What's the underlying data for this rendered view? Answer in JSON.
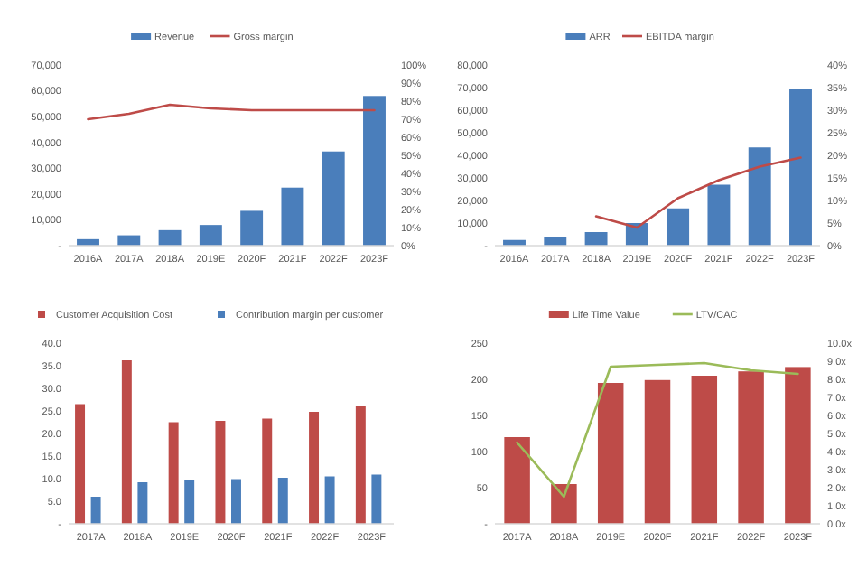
{
  "chart_data": [
    {
      "type": "bar",
      "categories": [
        "2016A",
        "2017A",
        "2018A",
        "2019E",
        "2020F",
        "2021F",
        "2022F",
        "2023F"
      ],
      "series": [
        {
          "name": "Revenue",
          "color": "#4a7ebb",
          "values": [
            2500,
            4000,
            6000,
            8000,
            13500,
            22500,
            36500,
            58000
          ]
        },
        {
          "name": "Gross margin",
          "type": "line",
          "axis": "y2",
          "color": "#be4b48",
          "values": [
            70,
            73,
            78,
            76,
            75,
            75,
            75,
            75
          ]
        }
      ],
      "ylim": [
        0,
        70000
      ],
      "yticks": [
        {
          "value": 0,
          "label": "-"
        },
        {
          "value": 10000,
          "label": "10,000"
        },
        {
          "value": 20000,
          "label": "20,000"
        },
        {
          "value": 30000,
          "label": "30,000"
        },
        {
          "value": 40000,
          "label": "40,000"
        },
        {
          "value": 50000,
          "label": "50,000"
        },
        {
          "value": 60000,
          "label": "60,000"
        },
        {
          "value": 70000,
          "label": "70,000"
        }
      ],
      "y2lim": [
        0,
        100
      ],
      "y2ticks": [
        {
          "value": 0,
          "label": "0%"
        },
        {
          "value": 10,
          "label": "10%"
        },
        {
          "value": 20,
          "label": "20%"
        },
        {
          "value": 30,
          "label": "30%"
        },
        {
          "value": 40,
          "label": "40%"
        },
        {
          "value": 50,
          "label": "50%"
        },
        {
          "value": 60,
          "label": "60%"
        },
        {
          "value": 70,
          "label": "70%"
        },
        {
          "value": 80,
          "label": "80%"
        },
        {
          "value": 90,
          "label": "90%"
        },
        {
          "value": 100,
          "label": "100%"
        }
      ],
      "legend": "top",
      "grid": false
    },
    {
      "type": "bar",
      "categories": [
        "2016A",
        "2017A",
        "2018A",
        "2019E",
        "2020F",
        "2021F",
        "2022F",
        "2023F"
      ],
      "series": [
        {
          "name": "ARR",
          "color": "#4a7ebb",
          "values": [
            2500,
            4000,
            6000,
            10000,
            16500,
            27000,
            43500,
            69500
          ]
        },
        {
          "name": "EBITDA margin",
          "type": "line",
          "axis": "y2",
          "color": "#be4b48",
          "values": [
            null,
            null,
            6.5,
            4,
            10.5,
            14.5,
            17.5,
            19.5
          ]
        }
      ],
      "ylim": [
        0,
        80000
      ],
      "yticks": [
        {
          "value": 0,
          "label": "-"
        },
        {
          "value": 10000,
          "label": "10,000"
        },
        {
          "value": 20000,
          "label": "20,000"
        },
        {
          "value": 30000,
          "label": "30,000"
        },
        {
          "value": 40000,
          "label": "40,000"
        },
        {
          "value": 50000,
          "label": "50,000"
        },
        {
          "value": 60000,
          "label": "60,000"
        },
        {
          "value": 70000,
          "label": "70,000"
        },
        {
          "value": 80000,
          "label": "80,000"
        }
      ],
      "y2lim": [
        0,
        40
      ],
      "y2ticks": [
        {
          "value": 0,
          "label": "0%"
        },
        {
          "value": 5,
          "label": "5%"
        },
        {
          "value": 10,
          "label": "10%"
        },
        {
          "value": 15,
          "label": "15%"
        },
        {
          "value": 20,
          "label": "20%"
        },
        {
          "value": 25,
          "label": "25%"
        },
        {
          "value": 30,
          "label": "30%"
        },
        {
          "value": 35,
          "label": "35%"
        },
        {
          "value": 40,
          "label": "40%"
        }
      ],
      "legend": "top",
      "grid": false
    },
    {
      "type": "bar",
      "categories": [
        "2017A",
        "2018A",
        "2019E",
        "2020F",
        "2021F",
        "2022F",
        "2023F"
      ],
      "series": [
        {
          "name": "Customer Acquisition Cost",
          "color": "#be4b48",
          "values": [
            26.5,
            36.2,
            22.5,
            22.8,
            23.3,
            24.8,
            26.1
          ]
        },
        {
          "name": "Contribution margin per customer",
          "color": "#4a7ebb",
          "values": [
            6,
            9.2,
            9.7,
            9.9,
            10.2,
            10.5,
            10.9
          ]
        }
      ],
      "ylim": [
        0,
        40
      ],
      "yticks": [
        {
          "value": 0,
          "label": "-"
        },
        {
          "value": 5,
          "label": "5.0"
        },
        {
          "value": 10,
          "label": "10.0"
        },
        {
          "value": 15,
          "label": "15.0"
        },
        {
          "value": 20,
          "label": "20.0"
        },
        {
          "value": 25,
          "label": "25.0"
        },
        {
          "value": 30,
          "label": "30.0"
        },
        {
          "value": 35,
          "label": "35.0"
        },
        {
          "value": 40,
          "label": "40.0"
        }
      ],
      "legend": "top left",
      "grid": false
    },
    {
      "type": "bar",
      "categories": [
        "2017A",
        "2018A",
        "2019E",
        "2020F",
        "2021F",
        "2022F",
        "2023F"
      ],
      "series": [
        {
          "name": "Life Time Value",
          "color": "#be4b48",
          "values": [
            120,
            55,
            195,
            199,
            205,
            211,
            217
          ]
        },
        {
          "name": "LTV/CAC",
          "type": "line",
          "axis": "y2",
          "color": "#9bbb59",
          "values": [
            4.5,
            1.5,
            8.7,
            8.8,
            8.9,
            8.5,
            8.3
          ]
        }
      ],
      "ylim": [
        0,
        250
      ],
      "yticks": [
        {
          "value": 0,
          "label": "-"
        },
        50,
        100,
        150,
        200,
        250
      ],
      "y2lim": [
        0,
        10
      ],
      "y2ticks": [
        {
          "value": 0,
          "label": "0.0x"
        },
        {
          "value": 1,
          "label": "1.0x"
        },
        {
          "value": 2,
          "label": "2.0x"
        },
        {
          "value": 3,
          "label": "3.0x"
        },
        {
          "value": 4,
          "label": "4.0x"
        },
        {
          "value": 5,
          "label": "5.0x"
        },
        {
          "value": 6,
          "label": "6.0x"
        },
        {
          "value": 7,
          "label": "7.0x"
        },
        {
          "value": 8,
          "label": "8.0x"
        },
        {
          "value": 9,
          "label": "9.0x"
        },
        {
          "value": 10,
          "label": "10.0x"
        }
      ],
      "legend": "top",
      "grid": false
    }
  ]
}
